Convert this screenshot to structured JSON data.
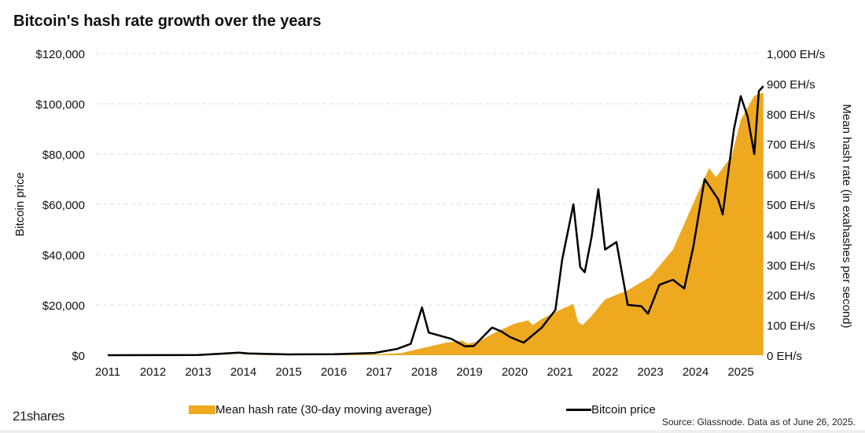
{
  "chart_data": {
    "type": "area+line",
    "title": "Bitcoin's hash rate growth over the years",
    "ylabel": "Bitcoin price",
    "y2label": "Mean hash rate (in exahashes per second)",
    "xlim": [
      2011,
      2025.5
    ],
    "ylim": [
      0,
      120000
    ],
    "y2lim": [
      0,
      1000
    ],
    "grid": true,
    "legend_position": "bottom",
    "x_ticks": [
      "2011",
      "2012",
      "2013",
      "2014",
      "2015",
      "2016",
      "2017",
      "2018",
      "2019",
      "2020",
      "2021",
      "2022",
      "2023",
      "2024",
      "2025"
    ],
    "y_ticks": [
      "$0",
      "$20,000",
      "$40,000",
      "$60,000",
      "$80,000",
      "$100,000",
      "$120,000"
    ],
    "y2_ticks": [
      "0 EH/s",
      "100 EH/s",
      "200 EH/s",
      "300 EH/s",
      "400 EH/s",
      "500 EH/s",
      "600 EH/s",
      "700 EH/s",
      "800 EH/s",
      "900 EH/s",
      "1,000 EH/s"
    ],
    "series": [
      {
        "name": "Mean hash rate (30-day moving average)",
        "axis": "right",
        "type": "area",
        "color": "#EEA920",
        "x": [
          2011,
          2014,
          2016,
          2017,
          2017.5,
          2018,
          2018.5,
          2018.85,
          2018.95,
          2019.2,
          2019.5,
          2020,
          2020.3,
          2020.4,
          2020.6,
          2021,
          2021.3,
          2021.4,
          2021.5,
          2021.7,
          2022,
          2022.5,
          2023,
          2023.5,
          2024,
          2024.3,
          2024.45,
          2024.8,
          2025,
          2025.3,
          2025.5
        ],
        "values": [
          0,
          0.5,
          1.5,
          3,
          7,
          25,
          42,
          48,
          38,
          45,
          70,
          105,
          115,
          100,
          120,
          150,
          170,
          110,
          100,
          130,
          185,
          215,
          260,
          350,
          520,
          620,
          590,
          660,
          780,
          860,
          870
        ]
      },
      {
        "name": "Bitcoin price",
        "axis": "left",
        "type": "line",
        "color": "#000000",
        "x": [
          2011,
          2013,
          2013.9,
          2014.1,
          2015,
          2016,
          2016.9,
          2017.4,
          2017.7,
          2017.95,
          2018.1,
          2018.3,
          2018.6,
          2018.9,
          2019.1,
          2019.5,
          2019.7,
          2019.9,
          2020.2,
          2020.5,
          2020.6,
          2020.9,
          2021.05,
          2021.3,
          2021.45,
          2021.55,
          2021.7,
          2021.85,
          2022.0,
          2022.25,
          2022.4,
          2022.5,
          2022.8,
          2022.95,
          2023.2,
          2023.5,
          2023.75,
          2023.95,
          2024.2,
          2024.5,
          2024.6,
          2024.85,
          2025.0,
          2025.15,
          2025.3,
          2025.4,
          2025.5
        ],
        "values": [
          1,
          100,
          1000,
          700,
          300,
          400,
          900,
          2500,
          4500,
          19000,
          9000,
          8000,
          6500,
          3500,
          3700,
          11000,
          9500,
          7200,
          5000,
          9500,
          11000,
          18000,
          38000,
          60000,
          35000,
          33000,
          47000,
          66000,
          42000,
          45000,
          30000,
          20000,
          19500,
          16500,
          28000,
          30000,
          26500,
          43000,
          70000,
          62000,
          56000,
          90000,
          103000,
          95000,
          80000,
          105000,
          107000
        ]
      }
    ]
  },
  "legend": {
    "hash": "Mean hash rate (30-day moving average)",
    "price": "Bitcoin price"
  },
  "logo": "21shares",
  "source": "Source: Glassnode. Data as of June 26, 2025."
}
